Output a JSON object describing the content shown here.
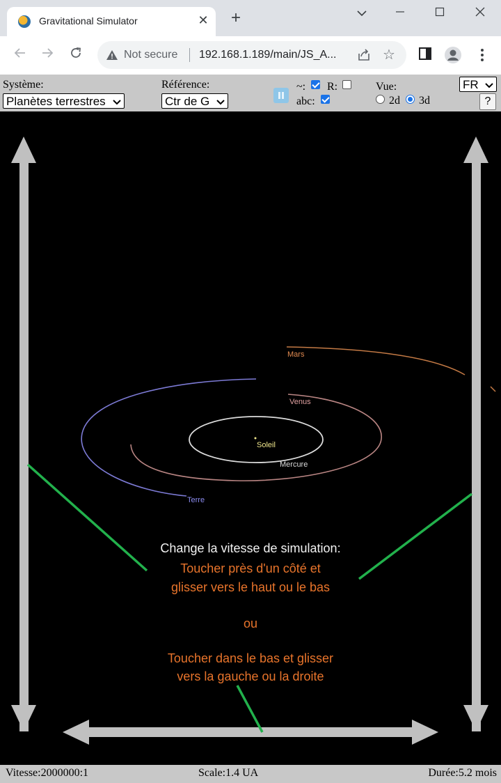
{
  "browser": {
    "tab_title": "Gravitational Simulator",
    "new_tab_symbol": "+",
    "close_symbol": "✕",
    "security_text": "Not secure",
    "url": "192.168.1.189/main/JS_A..."
  },
  "controls": {
    "system_label": "Système:",
    "system_value": "Planètes terrestres",
    "reference_label": "Référence:",
    "reference_value": "Ctr de G",
    "trail_label": "~:",
    "trail_checked": true,
    "r_label": "R:",
    "r_checked": false,
    "abc_label": "abc:",
    "abc_checked": true,
    "view_label": "Vue:",
    "view_2d": "2d",
    "view_3d": "3d",
    "view_selected": "3d",
    "language_value": "FR",
    "help_label": "?"
  },
  "scene": {
    "planets": [
      {
        "name": "Soleil",
        "color": "#f0e68c"
      },
      {
        "name": "Mercure",
        "color": "#d8d8d8"
      },
      {
        "name": "Venus",
        "color": "#e0a0a0"
      },
      {
        "name": "Terre",
        "color": "#8c8cf0"
      },
      {
        "name": "Mars",
        "color": "#e08a50"
      }
    ],
    "orbit_colors": {
      "mercure": "#dcdcdc",
      "venus": "#b98583",
      "terre": "#7d7bd6",
      "mars": "#c47a45"
    },
    "arrow_color": "#c0c0c0",
    "guide_line_color": "#22b14c"
  },
  "instructions": {
    "title": "Change la vitesse de simulation:",
    "line1": "Toucher près d'un côté et",
    "line2": "glisser vers le haut ou le bas",
    "or": "ou",
    "line3": "Toucher dans le bas et glisser",
    "line4": "vers la gauche ou la droite"
  },
  "status": {
    "speed": "Vitesse:2000000:1",
    "scale": "Scale:1.4 UA",
    "duration": "Durée:5.2 mois"
  }
}
